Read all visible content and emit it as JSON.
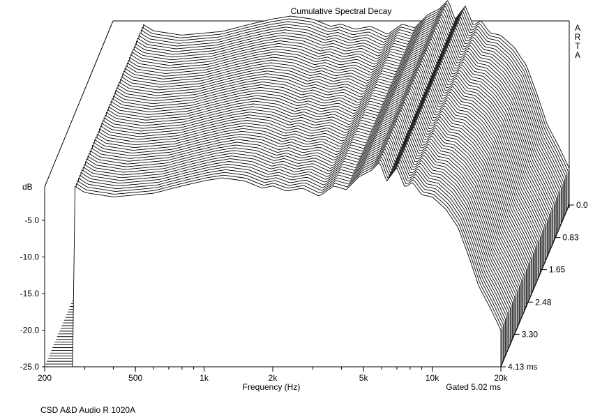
{
  "chart_data": {
    "type": "waterfall",
    "title": "Cumulative Spectral Decay",
    "brand": "ARTA",
    "xlabel": "Frequency (Hz)",
    "xscale": "log",
    "x_ticks": [
      "200",
      "500",
      "1k",
      "2k",
      "5k",
      "10k",
      "20k"
    ],
    "x_tick_values": [
      200,
      500,
      1000,
      2000,
      5000,
      10000,
      20000
    ],
    "xlim": [
      200,
      20000
    ],
    "ylabel": "dB",
    "y_ticks": [
      "-5.0",
      "-10.0",
      "-15.0",
      "-20.0",
      "-25.0"
    ],
    "y_tick_values": [
      -5,
      -10,
      -15,
      -20,
      -25
    ],
    "ylim": [
      -25,
      0
    ],
    "z_ticks": [
      "0.0",
      "0.83",
      "1.65",
      "2.48",
      "3.30",
      "4.13 ms"
    ],
    "z_tick_values": [
      0.0,
      0.83,
      1.65,
      2.48,
      3.3,
      4.13
    ],
    "zlim_ms": [
      0,
      4.13
    ],
    "gate_label": "Gated 5.02 ms",
    "footer": "CSD A&D Audio R 1020A",
    "slice_count": 60,
    "front_slice": [
      {
        "f": 270,
        "db": -0.3
      },
      {
        "f": 300,
        "db": -1.2
      },
      {
        "f": 400,
        "db": -1.8
      },
      {
        "f": 600,
        "db": -1.3
      },
      {
        "f": 800,
        "db": -0.3
      },
      {
        "f": 1000,
        "db": 0.4
      },
      {
        "f": 1200,
        "db": 0.8
      },
      {
        "f": 1500,
        "db": 0.4
      },
      {
        "f": 1800,
        "db": -0.6
      },
      {
        "f": 2000,
        "db": -0.3
      },
      {
        "f": 2300,
        "db": -1.0
      },
      {
        "f": 2700,
        "db": -0.6
      },
      {
        "f": 3200,
        "db": -1.7
      },
      {
        "f": 3700,
        "db": -0.3
      },
      {
        "f": 4200,
        "db": -0.8
      },
      {
        "f": 4800,
        "db": 1.0
      },
      {
        "f": 5400,
        "db": 1.8
      },
      {
        "f": 5900,
        "db": 3.0
      },
      {
        "f": 6300,
        "db": 0.3
      },
      {
        "f": 7000,
        "db": 2.2
      },
      {
        "f": 7600,
        "db": -0.5
      },
      {
        "f": 8200,
        "db": 0.2
      },
      {
        "f": 9000,
        "db": -1.5
      },
      {
        "f": 10000,
        "db": -1.8
      },
      {
        "f": 11500,
        "db": -3.5
      },
      {
        "f": 13000,
        "db": -6.0
      },
      {
        "f": 14500,
        "db": -10.0
      },
      {
        "f": 16000,
        "db": -14.0
      },
      {
        "f": 18000,
        "db": -17.0
      },
      {
        "f": 20000,
        "db": -20.0
      }
    ],
    "decay_peaks": [
      {
        "f": 5900,
        "db_at_start": 3.0,
        "persists_ms": 2.6
      },
      {
        "f": 7000,
        "db_at_start": 2.2,
        "persists_ms": 2.2
      },
      {
        "f": 2000,
        "db_at_start": -0.3,
        "persists_ms": 1.6
      },
      {
        "f": 1500,
        "db_at_start": 0.4,
        "persists_ms": 1.4
      }
    ]
  }
}
